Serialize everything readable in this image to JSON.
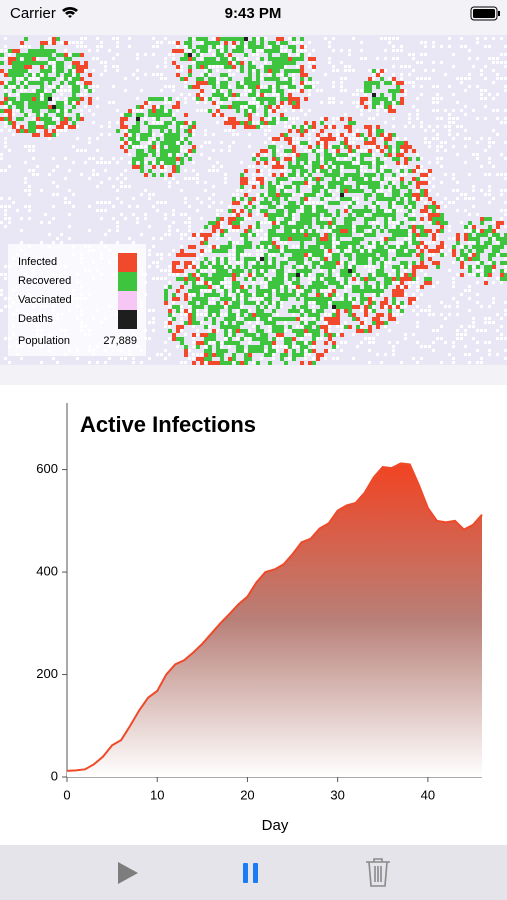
{
  "status_bar": {
    "carrier": "Carrier",
    "time": "9:43 PM"
  },
  "legend": {
    "items": [
      {
        "label": "Infected",
        "color": "#f1492b"
      },
      {
        "label": "Recovered",
        "color": "#3ec43e"
      },
      {
        "label": "Vaccinated",
        "color": "#f6c6f4"
      },
      {
        "label": "Deaths",
        "color": "#1e1e1e"
      }
    ],
    "population_label": "Population",
    "population": "27,889"
  },
  "chart_data": {
    "type": "area",
    "title": "Active Infections",
    "x_label": "Day",
    "x": [
      0,
      1,
      2,
      3,
      4,
      5,
      6,
      7,
      8,
      9,
      10,
      11,
      12,
      13,
      14,
      15,
      16,
      17,
      18,
      19,
      20,
      21,
      22,
      23,
      24,
      25,
      26,
      27,
      28,
      29,
      30,
      31,
      32,
      33,
      34,
      35,
      36,
      37,
      38,
      39,
      40,
      41,
      42,
      43,
      44,
      45,
      46
    ],
    "values": [
      12,
      13,
      15,
      25,
      40,
      62,
      72,
      100,
      130,
      155,
      168,
      200,
      220,
      228,
      243,
      260,
      280,
      300,
      318,
      337,
      352,
      380,
      400,
      405,
      415,
      435,
      458,
      465,
      485,
      495,
      520,
      530,
      535,
      555,
      585,
      605,
      603,
      612,
      610,
      570,
      525,
      500,
      497,
      500,
      483,
      492,
      512
    ],
    "color": "#ee4a2a",
    "xlim": [
      0,
      46
    ],
    "ylim": [
      0,
      730
    ],
    "xticks": [
      0,
      10,
      20,
      30,
      40
    ],
    "yticks": [
      0,
      200,
      400,
      600
    ]
  }
}
